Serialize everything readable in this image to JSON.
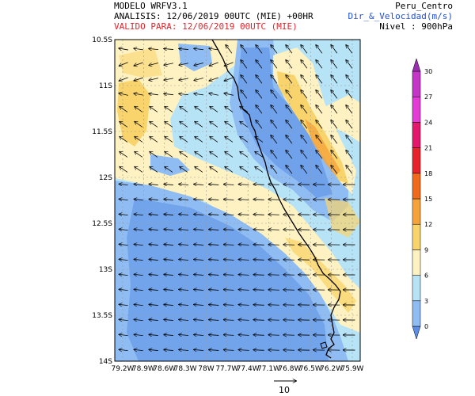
{
  "header": {
    "model": "MODELO WRFV3.1",
    "analysis": "ANALISIS: 12/06/2019 00UTC (MIE) +00HR",
    "valid": "VALIDO PARA: 12/06/2019 00UTC (MIE)",
    "domain": "Peru_Centro",
    "variable": "Dir_&_Velocidad(m/s)",
    "level": "Nivel : 900hPa"
  },
  "axes": {
    "lat_labels": [
      "10.5S",
      "11S",
      "11.5S",
      "12S",
      "12.5S",
      "13S",
      "13.5S",
      "14S"
    ],
    "lon_labels": [
      "79.2W",
      "78.9W",
      "78.6W",
      "78.3W",
      "78W",
      "77.7W",
      "77.4W",
      "77.1W",
      "76.8W",
      "76.5W",
      "76.2W",
      "75.9W"
    ]
  },
  "colorbar": {
    "levels": [
      "0",
      "3",
      "6",
      "9",
      "12",
      "15",
      "18",
      "21",
      "24",
      "27",
      "30"
    ],
    "colors": [
      "#5b8fe6",
      "#8fbcf2",
      "#b7e3f7",
      "#fff2c2",
      "#f9d46c",
      "#f5a23a",
      "#f06a1d",
      "#e8222a",
      "#e3176b",
      "#e33bd6",
      "#c436c8",
      "#9a2db0"
    ]
  },
  "reference_vector": {
    "label": "10"
  },
  "colors": {
    "header_red": "#e8222a",
    "header_blue": "#1f4fd8",
    "coast": "#000000"
  }
}
